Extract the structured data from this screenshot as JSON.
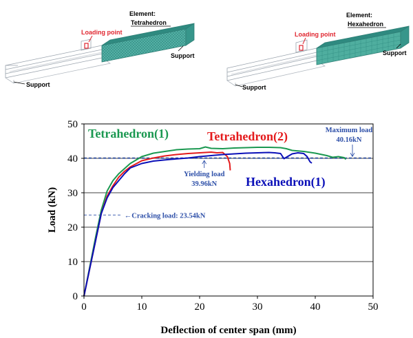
{
  "figure": {
    "left_model": {
      "element_label": "Element:",
      "element_name": "Tetrahedron",
      "loading_point": "Loading point",
      "support_right": "Support",
      "support_left": "Support"
    },
    "right_model": {
      "element_label": "Element:",
      "element_name": "Hexahedron",
      "loading_point": "Loading point",
      "support_right": "Support",
      "support_left": "Support"
    }
  },
  "colors": {
    "tetra1": "#1a9850",
    "tetra2": "#e41a1c",
    "hexa1": "#0a0fb8",
    "annotation": "#2d4fa8",
    "axis": "#000000",
    "mesh": "#3fa79b",
    "loading": "#e0262f"
  },
  "chart_data": {
    "type": "line",
    "xlabel": "Deflection of center span (mm)",
    "ylabel": "Load (kN)",
    "xlim": [
      0,
      50
    ],
    "ylim": [
      0,
      50
    ],
    "xticks": [
      0,
      10,
      20,
      30,
      40,
      50
    ],
    "yticks": [
      0,
      10,
      20,
      30,
      40,
      50
    ],
    "series": [
      {
        "name": "Tetrahedron(1)",
        "label": "Tetrahedron(1)",
        "color": "#1a9850",
        "x": [
          0,
          1,
          2,
          3,
          4,
          5,
          6,
          7,
          8,
          9,
          10,
          12,
          14,
          16,
          18,
          20,
          21,
          22,
          24,
          26,
          28,
          30,
          32,
          34,
          35,
          36,
          38,
          40,
          42,
          43,
          44,
          45,
          45.3
        ],
        "y": [
          0,
          8.5,
          17,
          25,
          30.5,
          33.5,
          35.5,
          37,
          38.5,
          39.5,
          40.5,
          41.5,
          42,
          42.5,
          42.7,
          42.8,
          43.3,
          42.9,
          42.8,
          43,
          43.1,
          43.2,
          43.2,
          43.1,
          42.8,
          42.3,
          42,
          41.5,
          40.8,
          40.3,
          40.5,
          40.2,
          39.7
        ]
      },
      {
        "name": "Tetrahedron(2)",
        "label": "Tetrahedron(2)",
        "color": "#e41a1c",
        "x": [
          0,
          1,
          2,
          3,
          4,
          5,
          6,
          7,
          8,
          10,
          12,
          14,
          16,
          18,
          20,
          22,
          23,
          24,
          24.8,
          25.2,
          25.3
        ],
        "y": [
          0,
          8,
          16,
          24,
          29,
          32,
          34.5,
          36.2,
          37.5,
          39.3,
          40.1,
          40.7,
          41.1,
          41.4,
          41.6,
          41.8,
          41.6,
          41.7,
          40.5,
          38.5,
          36.5
        ]
      },
      {
        "name": "Hexahedron(1)",
        "label": "Hexahedron(1)",
        "color": "#0a0fb8",
        "x": [
          0,
          1,
          2,
          3,
          4,
          5,
          6,
          7,
          8,
          10,
          12,
          15,
          18,
          20,
          22,
          24,
          26,
          28,
          30,
          32,
          33,
          34,
          34.6,
          35.3,
          36,
          37,
          38,
          38.6,
          39.1,
          39.4
        ],
        "y": [
          0,
          8,
          16,
          24,
          28.5,
          31.5,
          33.5,
          35.5,
          37.2,
          38.5,
          39.2,
          39.7,
          40.1,
          40.5,
          40.8,
          41.1,
          41.3,
          41.5,
          41.6,
          41.7,
          41.6,
          41.4,
          39.9,
          40.6,
          41.3,
          41.6,
          41.4,
          40.5,
          39,
          38.6
        ]
      }
    ],
    "reference_lines": [
      {
        "label": "Cracking load: 23.54kN",
        "value": 23.54
      },
      {
        "label": "Yielding load 39.96kN",
        "value": 39.96
      },
      {
        "label": "Maximum load 40.16kN",
        "value": 40.16
      }
    ],
    "annotations": {
      "cracking": "←Cracking load: 23.54kN",
      "yielding_line1": "Yielding load",
      "yielding_line2": "39.96kN",
      "maximum_line1": "Maximum load",
      "maximum_line2": "40.16kN"
    }
  }
}
